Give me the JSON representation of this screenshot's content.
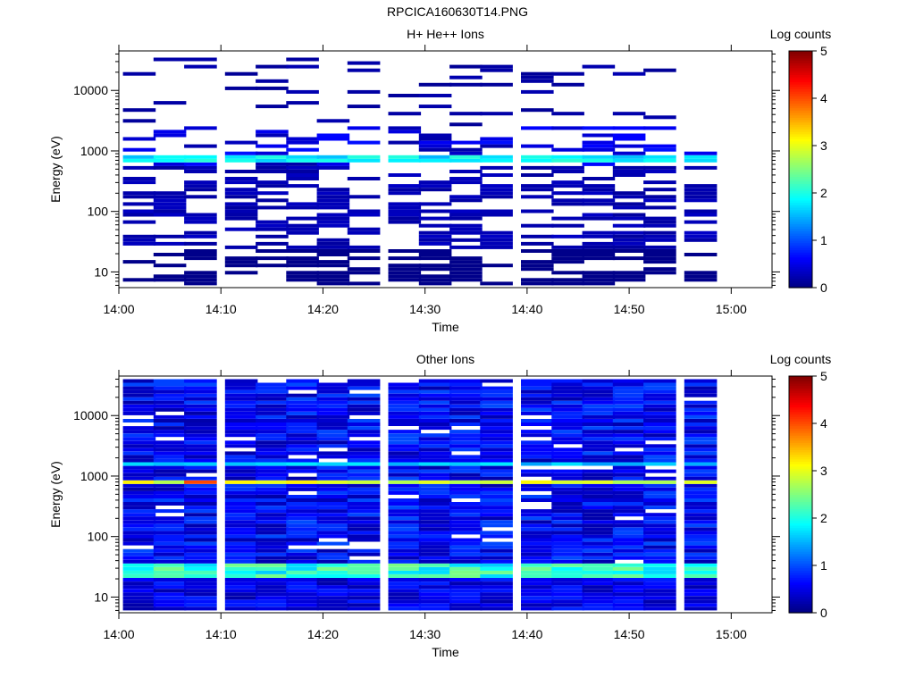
{
  "page": {
    "title": "RPCICA160630T14.PNG"
  },
  "chart_data": [
    {
      "type": "heatmap",
      "title": "H+ He++ Ions",
      "xlabel": "Time",
      "ylabel": "Energy (eV)",
      "x_ticks": [
        "14:00",
        "14:10",
        "14:20",
        "14:30",
        "14:40",
        "14:50",
        "15:00"
      ],
      "y_ticks": [
        "10",
        "100",
        "1000",
        "10000"
      ],
      "y_scale": "log",
      "x_range": [
        "14:00",
        "15:04"
      ],
      "y_range": [
        5.5,
        45000
      ],
      "time_bins": [
        "14:02",
        "14:05",
        "14:08",
        "14:12",
        "14:15",
        "14:18",
        "14:21",
        "14:24",
        "14:28",
        "14:31",
        "14:34",
        "14:37",
        "14:41",
        "14:44",
        "14:47",
        "14:50",
        "14:53",
        "14:57"
      ],
      "colorbar": {
        "label": "Log counts",
        "min": 0,
        "max": 5,
        "ticks": [
          "0",
          "1",
          "2",
          "3",
          "4",
          "5"
        ]
      },
      "grid": false,
      "sparse": true
    },
    {
      "type": "heatmap",
      "title": "Other Ions",
      "xlabel": "Time",
      "ylabel": "Energy (eV)",
      "x_ticks": [
        "14:00",
        "14:10",
        "14:20",
        "14:30",
        "14:40",
        "14:50",
        "15:00"
      ],
      "y_ticks": [
        "10",
        "100",
        "1000",
        "10000"
      ],
      "y_scale": "log",
      "x_range": [
        "14:00",
        "15:04"
      ],
      "y_range": [
        5.5,
        45000
      ],
      "time_bins": [
        "14:02",
        "14:05",
        "14:08",
        "14:12",
        "14:15",
        "14:18",
        "14:21",
        "14:24",
        "14:28",
        "14:31",
        "14:34",
        "14:37",
        "14:41",
        "14:44",
        "14:47",
        "14:50",
        "14:53",
        "14:57"
      ],
      "colorbar": {
        "label": "Log counts",
        "min": 0,
        "max": 5,
        "ticks": [
          "0",
          "1",
          "2",
          "3",
          "4",
          "5"
        ]
      },
      "grid": false,
      "sparse": false
    }
  ]
}
